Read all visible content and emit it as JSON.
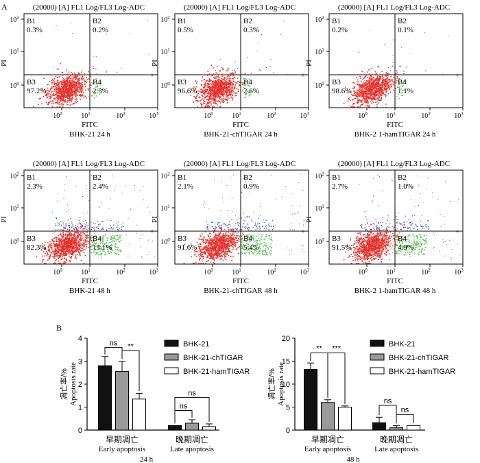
{
  "panel_a": {
    "label": "A",
    "plot_title": "(20000) [A] FL1 Log/FL3 Log-ADC",
    "x_label": "FITC",
    "y_label": "PI",
    "ticks": [
      "10",
      "1",
      "10",
      "0",
      "10",
      "1",
      "10",
      "2",
      "10",
      "3"
    ],
    "x_tick_labels": [
      [
        "10",
        "0"
      ],
      [
        "10",
        "1"
      ],
      [
        "10",
        "2"
      ],
      [
        "10",
        "3"
      ]
    ],
    "y_tick_labels": [
      [
        "10",
        "0"
      ],
      [
        "10",
        "1"
      ],
      [
        "10",
        "2"
      ]
    ],
    "quadrant_names": [
      "B1",
      "B2",
      "B3",
      "B4"
    ],
    "plots": [
      {
        "caption": "BHK-21 24 h",
        "b1": "0.3%",
        "b2": "0.2%",
        "b3": "97.2%",
        "b4": "2.3%",
        "spread": 0.0
      },
      {
        "caption": "BHK-21-chTIGAR 24 h",
        "b1": "0.5%",
        "b2": "0.3%",
        "b3": "96.6%",
        "b4": "2.6%",
        "spread": 0.0
      },
      {
        "caption": "BHK-2 1-hamTIGAR 24 h",
        "b1": "0.2%",
        "b2": "0.1%",
        "b3": "98.6%",
        "b4": "1.1%",
        "spread": 0.0
      },
      {
        "caption": "BHK-21 48 h",
        "b1": "2.3%",
        "b2": "2.4%",
        "b3": "82.3%",
        "b4": "13.1%",
        "spread": 1.0
      },
      {
        "caption": "BHK-21-chTIGAR 48 h",
        "b1": "2.1%",
        "b2": "0.9%",
        "b3": "91.6%",
        "b4": "5.4%",
        "spread": 1.0
      },
      {
        "caption": "BHK-2 1-hamTIGAR 48 h",
        "b1": "2.7%",
        "b2": "1.0%",
        "b3": "91.5%",
        "b4": "4.9%",
        "spread": 1.0
      }
    ],
    "colors": {
      "live": "#e8302a",
      "late": "#2a3fb0",
      "early": "#5ec45a"
    }
  },
  "panel_b": {
    "label": "B",
    "y_label_cn": "凋亡率/%",
    "y_label_en": "Apoptosis rate",
    "group_labels": [
      {
        "cn": "早期凋亡",
        "en": "Early apoptosis"
      },
      {
        "cn": "晚期凋亡",
        "en": "Late apoptosis"
      }
    ],
    "legend": [
      "BHK-21",
      "BHK-21-chTIGAR",
      "BHK-21-hamTIGAR"
    ],
    "colors": {
      "s1": "#111111",
      "s2": "#9a9a9a",
      "s3": "#ffffff"
    }
  },
  "chart_data": [
    {
      "type": "bar",
      "title": "24 h",
      "ylabel": "凋亡率/% Apoptosis rate",
      "ylim": [
        0,
        4
      ],
      "yticks": [
        0,
        1,
        2,
        3,
        4
      ],
      "categories": [
        "早期凋亡 Early apoptosis",
        "晚期凋亡 Late apoptosis"
      ],
      "series": [
        {
          "name": "BHK-21",
          "values": [
            2.8,
            0.2
          ],
          "errors": [
            0.4,
            0.0
          ]
        },
        {
          "name": "BHK-21-chTIGAR",
          "values": [
            2.55,
            0.3
          ],
          "errors": [
            0.45,
            0.15
          ]
        },
        {
          "name": "BHK-21-hamTIGAR",
          "values": [
            1.35,
            0.15
          ],
          "errors": [
            0.25,
            0.12
          ]
        }
      ],
      "annotations": [
        {
          "text": "ns",
          "group": 0,
          "from": 0,
          "to": 1,
          "level": 3.6
        },
        {
          "text": "**",
          "group": 0,
          "from": 1,
          "to": 2,
          "level": 3.45
        },
        {
          "text": "ns",
          "group": 1,
          "from": 0,
          "to": 1,
          "level": 0.85
        },
        {
          "text": "ns",
          "group": 1,
          "from": 0,
          "to": 2,
          "level": 1.42
        }
      ]
    },
    {
      "type": "bar",
      "title": "48 h",
      "ylabel": "凋亡率/% Apoptosis rate",
      "ylim": [
        0,
        20
      ],
      "yticks": [
        0,
        5,
        10,
        15,
        20
      ],
      "categories": [
        "早期凋亡 Early apoptosis",
        "晚期凋亡 Late apoptosis"
      ],
      "series": [
        {
          "name": "BHK-21",
          "values": [
            13.2,
            1.6
          ],
          "errors": [
            1.4,
            1.2
          ]
        },
        {
          "name": "BHK-21-chTIGAR",
          "values": [
            6.0,
            0.5
          ],
          "errors": [
            0.6,
            0.5
          ]
        },
        {
          "name": "BHK-21-hamTIGAR",
          "values": [
            5.0,
            1.0
          ],
          "errors": [
            0.25,
            0.0
          ]
        }
      ],
      "annotations": [
        {
          "text": "**",
          "group": 0,
          "from": 0,
          "to": 1,
          "level": 16.8
        },
        {
          "text": "***",
          "group": 0,
          "from": 1,
          "to": 2,
          "level": 16.8
        },
        {
          "text": "ns",
          "group": 1,
          "from": 0,
          "to": 1,
          "level": 5.4
        },
        {
          "text": "ns",
          "group": 1,
          "from": 1,
          "to": 2,
          "level": 3.4
        }
      ]
    }
  ]
}
